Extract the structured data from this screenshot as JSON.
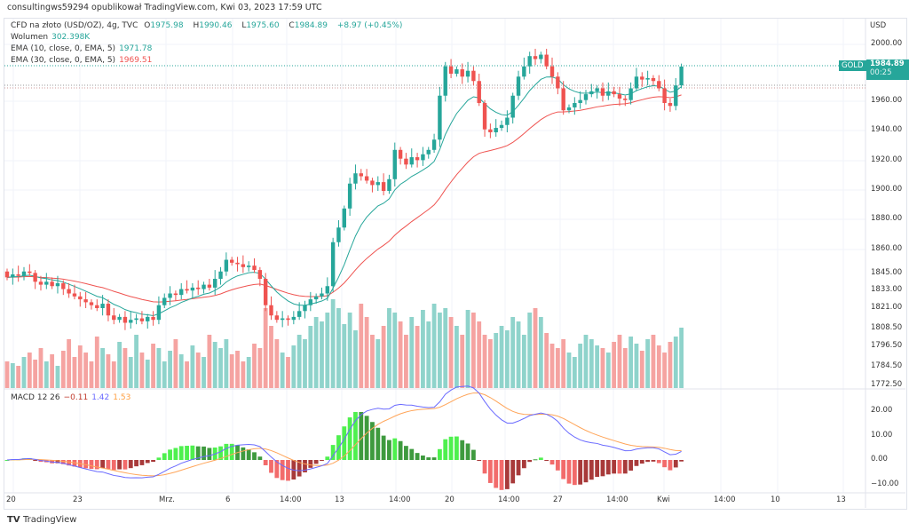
{
  "header": {
    "publisher": "consultingws59294 opublikował TradingView.com, Kwi 03, 2023 17:59 UTC"
  },
  "legend": {
    "symbol": "CFD na złoto (USD/OZ), 4g, TVC",
    "o_label": "O",
    "open": "1975.98",
    "h_label": "H",
    "high": "1990.46",
    "l_label": "L",
    "low": "1975.60",
    "c_label": "C",
    "close": "1984.89",
    "change": "+8.97 (+0.45%)",
    "volume_label": "Wolumen",
    "volume": "302.398K",
    "ema10_label": "EMA (10, close, 0, EMA, 5)",
    "ema10": "1971.78",
    "ema30_label": "EMA (30, close, 0, EMA, 5)",
    "ema30": "1969.51",
    "macd_label": "MACD 12 26",
    "macd_hist": "−0.11",
    "macd_line": "1.42",
    "macd_signal": "1.53"
  },
  "price_axis": {
    "currency": "USD",
    "labels": [
      "2000.00",
      "1960.00",
      "1940.00",
      "1920.00",
      "1900.00",
      "1880.00",
      "1860.00",
      "1845.00",
      "1833.00",
      "1821.00",
      "1808.50",
      "1796.50",
      "1784.50",
      "1772.50"
    ],
    "symbol_tag": "GOLD",
    "last_price": "1984.89",
    "countdown": "00:25"
  },
  "macd_axis": {
    "labels": [
      "20.00",
      "10.00",
      "0.00",
      "−10.00"
    ]
  },
  "time_axis": {
    "labels": [
      "20",
      "23",
      "Mrz.",
      "6",
      "14:00",
      "13",
      "14:00",
      "20",
      "14:00",
      "27",
      "14:00",
      "Kwi",
      "14:00",
      "10",
      "13"
    ]
  },
  "brand": {
    "name": "TradingView"
  },
  "colors": {
    "up": "#26a69a",
    "down": "#ef5350",
    "vol_up": "#8fd3cb",
    "vol_down": "#f5a3a1",
    "ema10": "#26a69a",
    "ema30": "#ef5350",
    "macd": "#6a6aff",
    "signal": "#ffa559"
  },
  "chart_data": {
    "type": "candlestick",
    "first_open": 1845,
    "closes": [
      1841,
      1843,
      1842,
      1845,
      1844,
      1838,
      1836,
      1838,
      1835,
      1837,
      1833,
      1830,
      1828,
      1826,
      1824,
      1822,
      1820,
      1823,
      1815,
      1812,
      1814,
      1810,
      1812,
      1813,
      1811,
      1814,
      1812,
      1822,
      1827,
      1830,
      1829,
      1833,
      1832,
      1834,
      1833,
      1836,
      1834,
      1840,
      1845,
      1853,
      1851,
      1850,
      1848,
      1849,
      1846,
      1840,
      1822,
      1815,
      1812,
      1813,
      1812,
      1814,
      1818,
      1822,
      1826,
      1828,
      1830,
      1835,
      1865,
      1875,
      1888,
      1905,
      1912,
      1910,
      1907,
      1904,
      1906,
      1900,
      1908,
      1928,
      1922,
      1918,
      1923,
      1921,
      1925,
      1928,
      1935,
      1965,
      1985,
      1980,
      1983,
      1978,
      1982,
      1975,
      1960,
      1942,
      1940,
      1943,
      1945,
      1950,
      1965,
      1978,
      1985,
      1992,
      1990,
      1993,
      1985,
      1978,
      1970,
      1955,
      1957,
      1960,
      1962,
      1966,
      1968,
      1970,
      1965,
      1968,
      1966,
      1963,
      1962,
      1970,
      1978,
      1976,
      1977,
      1975,
      1970,
      1960,
      1958,
      1972,
      1984.89
    ],
    "volumes": [
      30,
      28,
      25,
      35,
      40,
      32,
      45,
      30,
      38,
      25,
      42,
      55,
      35,
      48,
      40,
      30,
      58,
      45,
      38,
      30,
      52,
      45,
      35,
      60,
      40,
      32,
      50,
      45,
      30,
      42,
      55,
      38,
      30,
      48,
      40,
      35,
      60,
      52,
      45,
      55,
      38,
      42,
      30,
      35,
      50,
      45,
      90,
      70,
      55,
      40,
      35,
      48,
      60,
      55,
      70,
      80,
      75,
      85,
      100,
      90,
      72,
      85,
      65,
      95,
      80,
      60,
      55,
      70,
      90,
      85,
      75,
      60,
      80,
      70,
      88,
      75,
      95,
      85,
      90,
      80,
      70,
      60,
      88,
      85,
      75,
      60,
      55,
      62,
      70,
      65,
      80,
      75,
      60,
      85,
      90,
      80,
      62,
      50,
      45,
      55,
      40,
      35,
      50,
      60,
      55,
      48,
      45,
      40,
      52,
      60,
      45,
      58,
      50,
      42,
      55,
      60,
      48,
      40,
      52,
      58,
      68
    ],
    "price_range": [
      1772.5,
      2000
    ],
    "macd_range": [
      -10,
      20
    ]
  }
}
